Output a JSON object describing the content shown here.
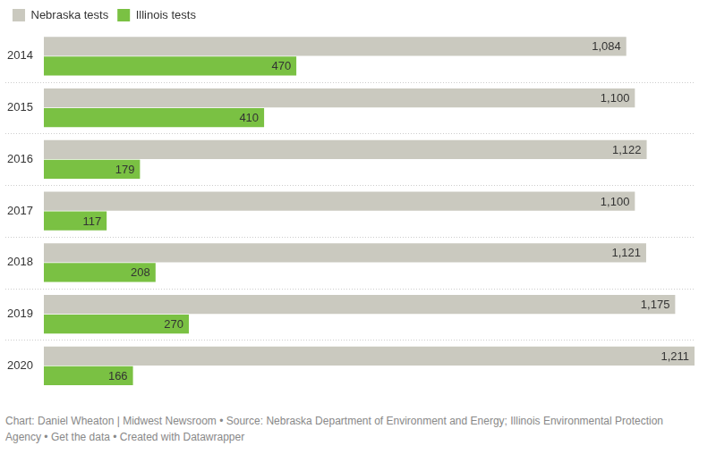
{
  "chart_data": {
    "type": "bar",
    "orientation": "horizontal",
    "categories": [
      "2014",
      "2015",
      "2016",
      "2017",
      "2018",
      "2019",
      "2020"
    ],
    "series": [
      {
        "name": "Nebraska tests",
        "color": "#cac9bf",
        "values": [
          1084,
          1100,
          1122,
          1100,
          1121,
          1175,
          1211
        ],
        "value_labels": [
          "1,084",
          "1,100",
          "1,122",
          "1,100",
          "1,121",
          "1,175",
          "1,211"
        ]
      },
      {
        "name": "Illinois tests",
        "color": "#7ac143",
        "values": [
          470,
          410,
          179,
          117,
          208,
          270,
          166
        ]
      }
    ],
    "xlim": [
      0,
      1211
    ],
    "xticks": [],
    "grid": false,
    "legend": "top-left",
    "data_labels": true,
    "tick_labels": "y",
    "annotations": [
      "Chart: Daniel Wheaton | Midwest Newsroom • Source: Nebraska Department of Environment and Energy; Illinois Environmental Protection Agency • Get the data • Created with Datawrapper"
    ]
  }
}
